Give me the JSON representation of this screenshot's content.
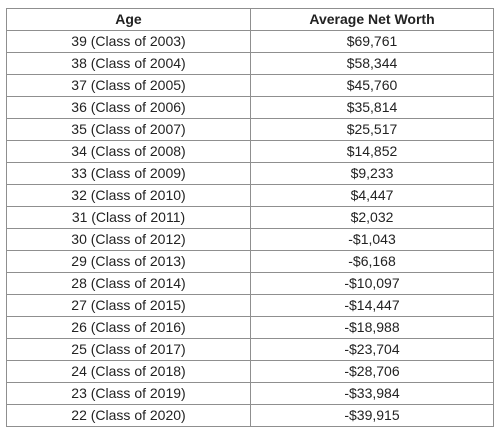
{
  "table": {
    "headers": [
      "Age",
      "Average Net Worth"
    ],
    "rows": [
      [
        "39 (Class of 2003)",
        "$69,761"
      ],
      [
        "38 (Class of 2004)",
        "$58,344"
      ],
      [
        "37 (Class of 2005)",
        "$45,760"
      ],
      [
        "36 (Class of 2006)",
        "$35,814"
      ],
      [
        "35 (Class of 2007)",
        "$25,517"
      ],
      [
        "34 (Class of 2008)",
        "$14,852"
      ],
      [
        "33 (Class of 2009)",
        "$9,233"
      ],
      [
        "32 (Class of 2010)",
        "$4,447"
      ],
      [
        "31 (Class of 2011)",
        "$2,032"
      ],
      [
        "30 (Class of 2012)",
        "-$1,043"
      ],
      [
        "29 (Class of 2013)",
        "-$6,168"
      ],
      [
        "28 (Class of 2014)",
        "-$10,097"
      ],
      [
        "27 (Class of 2015)",
        "-$14,447"
      ],
      [
        "26 (Class of 2016)",
        "-$18,988"
      ],
      [
        "25 (Class of 2017)",
        "-$23,704"
      ],
      [
        "24 (Class of 2018)",
        "-$28,706"
      ],
      [
        "23 (Class of 2019)",
        "-$33,984"
      ],
      [
        "22 (Class of 2020)",
        "-$39,915"
      ]
    ]
  }
}
